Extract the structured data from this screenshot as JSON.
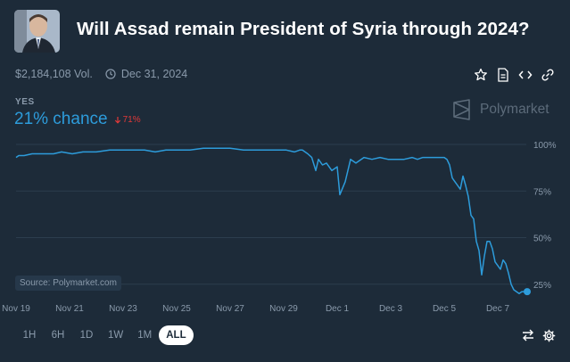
{
  "market": {
    "title": "Will Assad remain President of Syria through 2024?",
    "volume": "$2,184,108 Vol.",
    "end_date": "Dec 31, 2024",
    "outcome_label": "YES",
    "chance": "21% chance",
    "change": "71%",
    "brand": "Polymarket",
    "source": "Source: Polymarket.com"
  },
  "actions": [
    "star-icon",
    "document-icon",
    "code-icon",
    "link-icon"
  ],
  "colors": {
    "background": "#1d2b39",
    "line": "#2d9cdb",
    "down": "#e23939",
    "muted": "#8a9aab",
    "grid": "#2c3d4e"
  },
  "chart_data": {
    "type": "line",
    "title": "Will Assad remain President of Syria through 2024?",
    "xlabel": "",
    "ylabel": "",
    "x_ticks": [
      "Nov 19",
      "Nov 21",
      "Nov 23",
      "Nov 25",
      "Nov 27",
      "Nov 29",
      "Dec 1",
      "Dec 3",
      "Dec 5",
      "Dec 7"
    ],
    "y_ticks": [
      "100%",
      "75%",
      "50%",
      "25%"
    ],
    "ylim": [
      0,
      100
    ],
    "xlim": [
      0,
      19.2
    ],
    "series": [
      {
        "name": "Yes",
        "x": [
          0,
          0.1,
          0.3,
          0.6,
          0.9,
          1.4,
          1.7,
          2.1,
          2.5,
          3.0,
          3.5,
          3.9,
          4.3,
          4.8,
          5.2,
          5.6,
          6.0,
          6.5,
          7.0,
          7.5,
          8.0,
          8.5,
          9.0,
          9.4,
          9.8,
          10.1,
          10.4,
          10.6,
          10.7,
          10.8,
          10.9,
          11.05,
          11.2,
          11.3,
          11.45,
          11.6,
          11.8,
          12.0,
          12.1,
          12.3,
          12.5,
          12.7,
          13.0,
          13.3,
          13.6,
          13.9,
          14.2,
          14.5,
          14.8,
          15.0,
          15.2,
          15.5,
          15.8,
          16.0,
          16.1,
          16.2,
          16.3,
          16.4,
          16.5,
          16.6,
          16.7,
          16.8,
          16.9,
          17.0,
          17.1,
          17.2,
          17.3,
          17.4,
          17.5,
          17.6,
          17.7,
          17.8,
          17.9,
          18.0,
          18.1,
          18.2,
          18.3,
          18.4,
          18.5,
          18.6,
          18.7,
          18.8,
          18.9,
          19.0,
          19.1
        ],
        "values": [
          93,
          94,
          94,
          95,
          95,
          95,
          96,
          95,
          96,
          96,
          97,
          97,
          97,
          97,
          96,
          97,
          97,
          97,
          98,
          98,
          98,
          97,
          97,
          97,
          97,
          97,
          96,
          97,
          97,
          96,
          95,
          93,
          86,
          92,
          89,
          90,
          86,
          88,
          73,
          80,
          92,
          90,
          93,
          92,
          93,
          92,
          92,
          92,
          93,
          92,
          93,
          93,
          93,
          93,
          92,
          89,
          82,
          80,
          78,
          76,
          83,
          78,
          72,
          62,
          60,
          48,
          43,
          30,
          40,
          48,
          48,
          44,
          37,
          35,
          33,
          38,
          36,
          31,
          25,
          22,
          21,
          20,
          21,
          21,
          21
        ]
      }
    ]
  }
}
